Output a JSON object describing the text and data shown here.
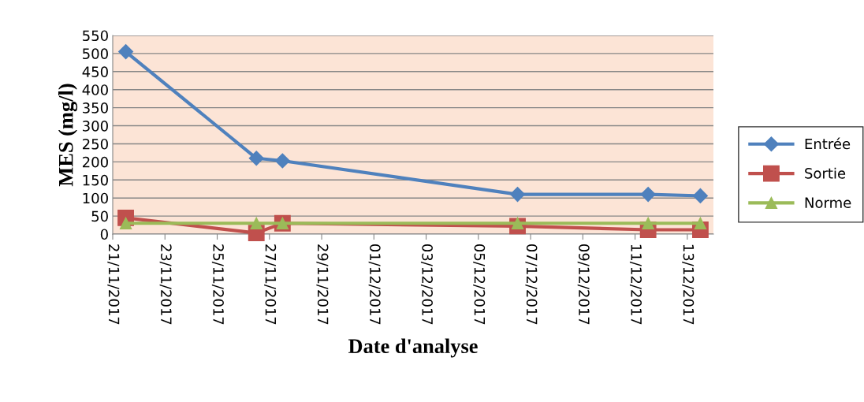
{
  "chart_data": {
    "type": "line",
    "xlabel": "Date d'analyse",
    "ylabel": "MES (mg/l)",
    "x": [
      "2017-11-21T12:00",
      "2017-11-26T12:00",
      "2017-11-27T12:00",
      "2017-12-06T12:00",
      "2017-12-11T12:00",
      "2017-12-13T12:00"
    ],
    "series": [
      {
        "name": "Entrée",
        "color": "#4f81bd",
        "marker": "diamond",
        "values": [
          505,
          210,
          203,
          110,
          110,
          106
        ]
      },
      {
        "name": "Sortie",
        "color": "#c0504d",
        "marker": "square",
        "values": [
          45,
          3,
          30,
          22,
          12,
          12
        ]
      },
      {
        "name": "Norme",
        "color": "#9bbb59",
        "marker": "triangle",
        "values": [
          30,
          30,
          30,
          30,
          30,
          30
        ]
      }
    ],
    "xlim": [
      "2017-11-21",
      "2017-12-14"
    ],
    "xticks": [
      {
        "value": "2017-11-21",
        "label": "21/11/2017"
      },
      {
        "value": "2017-11-23",
        "label": "23/11/2017"
      },
      {
        "value": "2017-11-25",
        "label": "25/11/2017"
      },
      {
        "value": "2017-11-27",
        "label": "27/11/2017"
      },
      {
        "value": "2017-11-29",
        "label": "29/11/2017"
      },
      {
        "value": "2017-12-01",
        "label": "01/12/2017"
      },
      {
        "value": "2017-12-03",
        "label": "03/12/2017"
      },
      {
        "value": "2017-12-05",
        "label": "05/12/2017"
      },
      {
        "value": "2017-12-07",
        "label": "07/12/2017"
      },
      {
        "value": "2017-12-09",
        "label": "09/12/2017"
      },
      {
        "value": "2017-12-11",
        "label": "11/12/2017"
      },
      {
        "value": "2017-12-13",
        "label": "13/12/2017"
      }
    ],
    "ylim": [
      0,
      550
    ],
    "yticks": [
      0,
      50,
      100,
      150,
      200,
      250,
      300,
      350,
      400,
      450,
      500,
      550
    ],
    "grid": "y",
    "legend": "right",
    "line_style": "solid"
  }
}
